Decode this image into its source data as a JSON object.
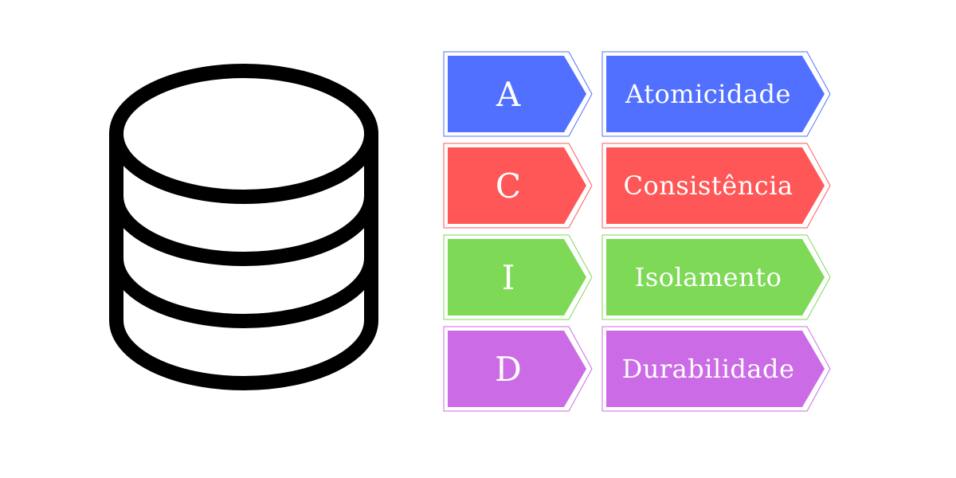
{
  "icon": "database-icon",
  "acid": [
    {
      "letter": "A",
      "word": "Atomicidade",
      "color": "#5170ff"
    },
    {
      "letter": "C",
      "word": "Consistência",
      "color": "#ff5757"
    },
    {
      "letter": "I",
      "word": "Isolamento",
      "color": "#7ed957"
    },
    {
      "letter": "D",
      "word": "Durabilidade",
      "color": "#cb6ce6"
    }
  ]
}
